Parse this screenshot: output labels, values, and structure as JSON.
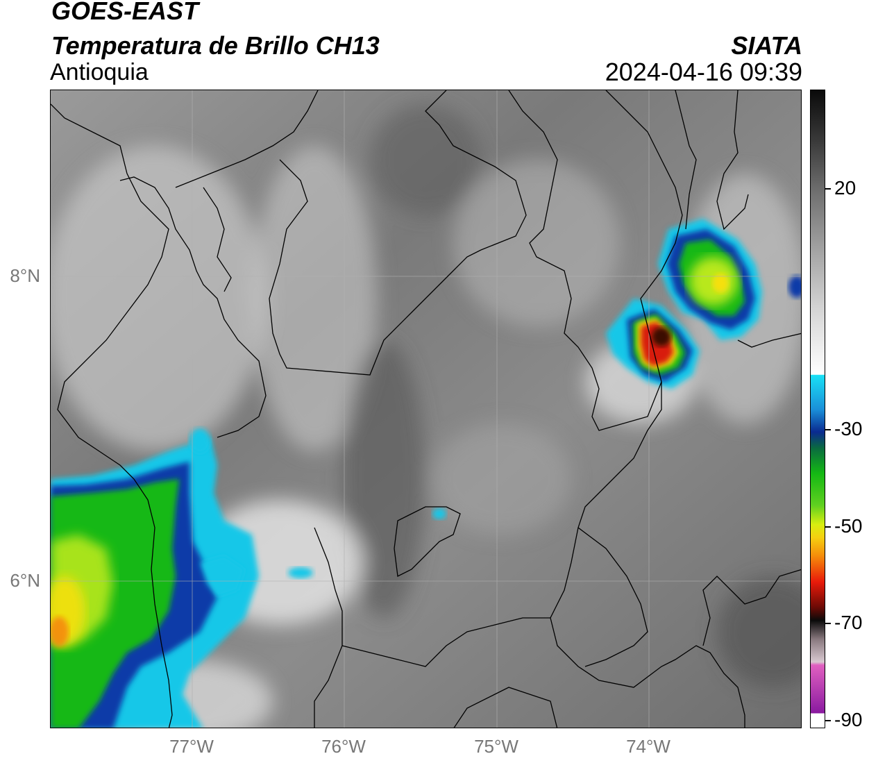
{
  "header": {
    "title_line1": "GOES-EAST",
    "title_line2": "Temperatura de Brillo CH13",
    "subtitle": "Antioquia",
    "brand": "SIATA",
    "timestamp": "2024-04-16 09:39"
  },
  "map": {
    "lat_labels": [
      "8°N",
      "6°N"
    ],
    "lon_labels": [
      "77°W",
      "76°W",
      "75°W",
      "74°W"
    ],
    "gridlines": true,
    "colors": {
      "cloud_cyan": "#19c7e8",
      "cloud_blue": "#0a3aa8",
      "cloud_green": "#14b814",
      "cloud_lime": "#b8e81a",
      "cloud_yellow": "#f5e010",
      "cloud_orange": "#f58a0a",
      "cloud_red": "#d81a0a",
      "cloud_darkred": "#3a0a05"
    }
  },
  "colorbar": {
    "ticks": [
      "20",
      "-30",
      "-50",
      "-70",
      "-90"
    ],
    "tick_values": [
      20,
      -30,
      -50,
      -70,
      -90
    ],
    "range": [
      -90,
      40
    ]
  }
}
